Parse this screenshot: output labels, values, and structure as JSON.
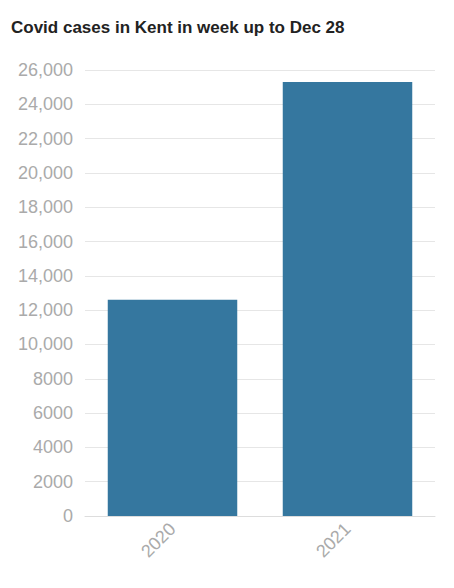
{
  "chart_data": {
    "type": "bar",
    "title": "Covid cases in Kent in week up to Dec 28",
    "categories": [
      "2020",
      "2021"
    ],
    "values": [
      12600,
      25300
    ],
    "color": "#35779f",
    "ylim": [
      0,
      26000
    ],
    "yticks": [
      0,
      2000,
      4000,
      6000,
      8000,
      {
        "value": 10000,
        "label": "10,000"
      },
      {
        "value": 12000,
        "label": "12,000"
      },
      {
        "value": 14000,
        "label": "14,000"
      },
      {
        "value": 16000,
        "label": "16,000"
      },
      {
        "value": 18000,
        "label": "18,000"
      },
      {
        "value": 20000,
        "label": "20,000"
      },
      {
        "value": 22000,
        "label": "22,000"
      },
      {
        "value": 24000,
        "label": "24,000"
      },
      {
        "value": 26000,
        "label": "26,000"
      }
    ],
    "grid": true
  }
}
